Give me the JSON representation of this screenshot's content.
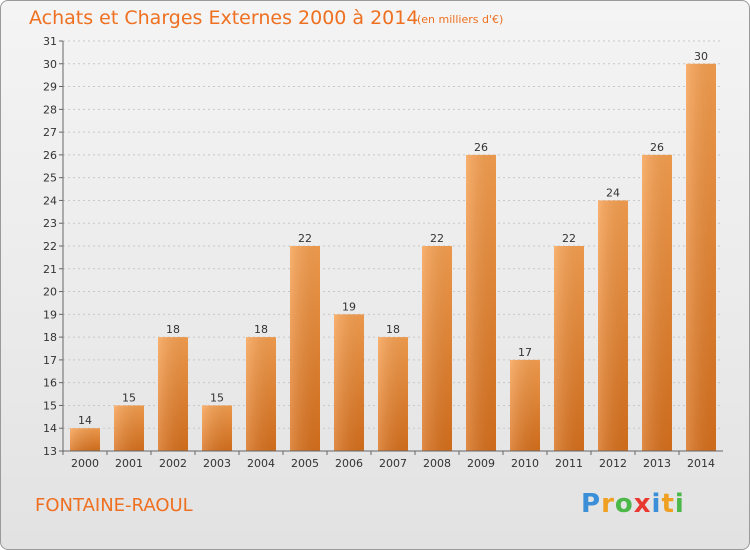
{
  "title": "Achats et Charges Externes 2000 à 2014",
  "subtitle": "(en milliers d'€)",
  "place_name": "FONTAINE-RAOUL",
  "logo": {
    "letters": [
      "P",
      "r",
      "o",
      "x",
      "i",
      "t",
      "i"
    ],
    "colors": [
      "#3a8fd8",
      "#f0a020",
      "#4cb848",
      "#e83830",
      "#3a8fd8",
      "#f0a020",
      "#4cb848"
    ]
  },
  "chart_data": {
    "type": "bar",
    "categories": [
      "2000",
      "2001",
      "2002",
      "2003",
      "2004",
      "2005",
      "2006",
      "2007",
      "2008",
      "2009",
      "2010",
      "2011",
      "2012",
      "2013",
      "2014"
    ],
    "values": [
      14,
      15,
      18,
      15,
      18,
      22,
      19,
      18,
      22,
      26,
      17,
      22,
      24,
      26,
      30
    ],
    "title": "Achats et Charges Externes 2000 à 2014",
    "subtitle": "(en milliers d'€)",
    "xlabel": "",
    "ylabel": "",
    "ylim": [
      13,
      31
    ],
    "yticks": [
      13,
      14,
      15,
      16,
      17,
      18,
      19,
      20,
      21,
      22,
      23,
      24,
      25,
      26,
      27,
      28,
      29,
      30,
      31
    ],
    "grid": true,
    "bar_color": "#f08a30"
  }
}
